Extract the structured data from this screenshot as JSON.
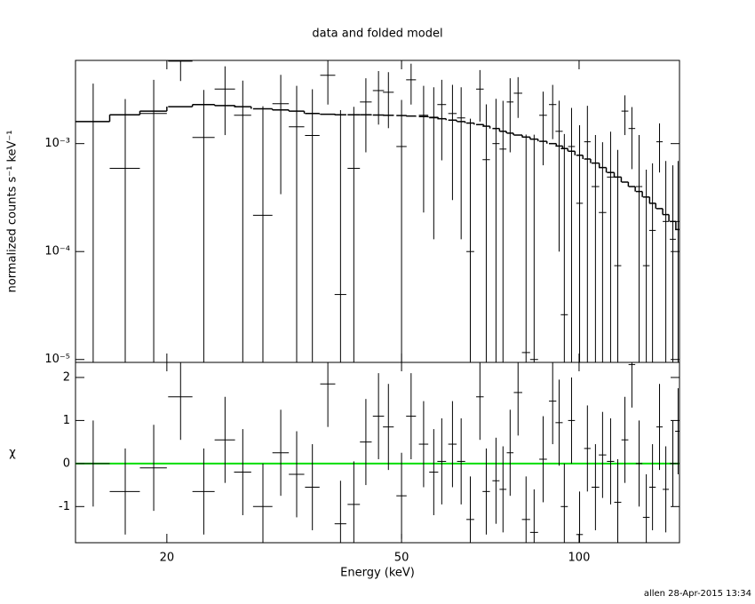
{
  "chart_data": [
    {
      "type": "errorbar",
      "title": "data and folded model",
      "ylabel": "normalized counts s⁻¹ keV⁻¹",
      "xlog": true,
      "ylog": true,
      "xlim": [
        14,
        148
      ],
      "ylim": [
        9.4e-06,
        0.0059
      ],
      "xticks": [
        20,
        50,
        100
      ],
      "yticks": [
        {
          "value": 1e-05,
          "label": "10⁻⁵"
        },
        {
          "value": 0.0001,
          "label": "10⁻⁴"
        },
        {
          "value": 0.001,
          "label": "10⁻³"
        }
      ],
      "x": [
        15.0,
        17.0,
        19.0,
        21.1,
        23.1,
        25.1,
        26.9,
        29.1,
        31.2,
        33.2,
        35.3,
        37.5,
        39.4,
        41.5,
        43.5,
        45.7,
        47.5,
        50.0,
        51.9,
        54.5,
        56.7,
        58.5,
        61.0,
        63.1,
        65.4,
        67.9,
        69.6,
        72.3,
        74.3,
        76.4,
        78.8,
        81.3,
        83.9,
        86.9,
        90.2,
        92.5,
        94.4,
        97.1,
        100.2,
        103.3,
        106.6,
        109.6,
        113.1,
        116.3,
        119.6,
        122.9,
        126.4,
        130.0,
        133.2,
        136.9,
        140.3,
        144.2,
        147.2
      ],
      "xerr": [
        1.0,
        1.0,
        1.0,
        1.0,
        1.0,
        1.0,
        0.9,
        1.1,
        1.0,
        1.0,
        1.0,
        1.1,
        0.9,
        1.0,
        1.0,
        1.0,
        1.0,
        1.0,
        1.0,
        1.0,
        1.0,
        1.0,
        1.0,
        1.0,
        1.0,
        1.0,
        1.0,
        1.0,
        1.0,
        1.0,
        1.3,
        1.3,
        1.3,
        1.3,
        1.3,
        1.3,
        1.3,
        1.3,
        1.3,
        1.3,
        1.6,
        1.6,
        1.6,
        1.6,
        1.6,
        1.6,
        1.6,
        1.7,
        1.7,
        1.7,
        1.7,
        1.7,
        1.7
      ],
      "series": [
        {
          "name": "data",
          "color": "#000000",
          "values": [
            0.0016,
            0.00059,
            0.0019,
            0.0058,
            0.00114,
            0.0032,
            0.00183,
            0.000217,
            0.00234,
            0.00143,
            0.00119,
            0.0043,
            4e-05,
            0.00059,
            0.00243,
            0.0031,
            0.00299,
            0.00094,
            0.0039,
            0.00183,
            0.00173,
            0.0023,
            0.0019,
            0.00173,
            0.0001,
            0.0032,
            0.00071,
            0.001,
            0.00089,
            0.00243,
            0.00293,
            1.16e-05,
            1e-05,
            0.00183,
            0.0023,
            0.0013,
            2.6e-05,
            0.00094,
            0.00028,
            0.00104,
            0.0004,
            0.00023,
            0.00049,
            7.4e-05,
            0.002,
            0.00138,
            0.0004,
            7.4e-05,
            0.000157,
            0.00104,
            0.00019,
            0.00013,
            0.00019
          ],
          "errors": [
            0.002,
            0.002,
            0.002,
            0.002,
            0.002,
            0.002,
            0.002,
            0.002,
            0.002,
            0.002,
            0.002,
            0.002,
            0.002,
            0.0016,
            0.0016,
            0.0016,
            0.0016,
            0.0016,
            0.0016,
            0.0016,
            0.0016,
            0.0016,
            0.0016,
            0.0016,
            0.0016,
            0.0016,
            0.0016,
            0.0016,
            0.0016,
            0.0016,
            0.0012,
            0.0012,
            0.0012,
            0.0012,
            0.0012,
            0.0012,
            0.0012,
            0.0012,
            0.0012,
            0.0012,
            0.0008,
            0.0008,
            0.0008,
            0.0008,
            0.0008,
            0.0008,
            0.0008,
            0.0005,
            0.0005,
            0.0005,
            0.0005,
            0.0005,
            0.0005
          ]
        },
        {
          "name": "model",
          "color": "#000000",
          "values": [
            0.0016,
            0.00185,
            0.002,
            0.0022,
            0.0023,
            0.00225,
            0.0022,
            0.0021,
            0.00205,
            0.002,
            0.0019,
            0.00187,
            0.00185,
            0.00185,
            0.00185,
            0.00184,
            0.00183,
            0.00182,
            0.0018,
            0.00178,
            0.00175,
            0.0017,
            0.00165,
            0.0016,
            0.00155,
            0.0015,
            0.00145,
            0.00138,
            0.0013,
            0.00125,
            0.0012,
            0.00115,
            0.0011,
            0.00105,
            0.001,
            0.00095,
            0.0009,
            0.00085,
            0.00078,
            0.00072,
            0.00066,
            0.0006,
            0.00054,
            0.00049,
            0.00044,
            0.0004,
            0.00036,
            0.00032,
            0.00028,
            0.00025,
            0.00022,
            0.00019,
            0.00016
          ]
        }
      ]
    },
    {
      "type": "residual",
      "ylabel": "χ",
      "xlabel": "Energy (keV)",
      "xlog": true,
      "xlim": [
        14,
        148
      ],
      "ylim": [
        -1.84,
        2.35
      ],
      "xticks": [
        20,
        50,
        100
      ],
      "yticks": [
        -1,
        0,
        1,
        2
      ],
      "zero_line_color": "#00dd00",
      "x": [
        15.0,
        17.0,
        19.0,
        21.1,
        23.1,
        25.1,
        26.9,
        29.1,
        31.2,
        33.2,
        35.3,
        37.5,
        39.4,
        41.5,
        43.5,
        45.7,
        47.5,
        50.0,
        51.9,
        54.5,
        56.7,
        58.5,
        61.0,
        63.1,
        65.4,
        67.9,
        69.6,
        72.3,
        74.3,
        76.4,
        78.8,
        81.3,
        83.9,
        86.9,
        90.2,
        92.5,
        94.4,
        97.1,
        100.2,
        103.3,
        106.6,
        109.6,
        113.1,
        116.3,
        119.6,
        122.9,
        126.4,
        130.0,
        133.2,
        136.9,
        140.3,
        144.2,
        147.2
      ],
      "xerr": [
        1.0,
        1.0,
        1.0,
        1.0,
        1.0,
        1.0,
        0.9,
        1.1,
        1.0,
        1.0,
        1.0,
        1.1,
        0.9,
        1.0,
        1.0,
        1.0,
        1.0,
        1.0,
        1.0,
        1.0,
        1.0,
        1.0,
        1.0,
        1.0,
        1.0,
        1.0,
        1.0,
        1.0,
        1.0,
        1.0,
        1.3,
        1.3,
        1.3,
        1.3,
        1.3,
        1.3,
        1.3,
        1.3,
        1.3,
        1.3,
        1.6,
        1.6,
        1.6,
        1.6,
        1.6,
        1.6,
        1.6,
        1.7,
        1.7,
        1.7,
        1.7,
        1.7,
        1.7
      ],
      "series": [
        {
          "name": "residuals",
          "color": "#000000",
          "values": [
            0.0,
            -0.65,
            -0.1,
            1.55,
            -0.65,
            0.55,
            -0.2,
            -1.0,
            0.25,
            -0.25,
            -0.55,
            1.85,
            -1.4,
            -0.95,
            0.5,
            1.1,
            0.85,
            -0.75,
            1.1,
            0.45,
            -0.2,
            0.05,
            0.45,
            0.05,
            -1.3,
            1.55,
            -0.65,
            -0.4,
            -0.6,
            0.25,
            1.65,
            -1.3,
            -1.6,
            0.1,
            1.45,
            0.95,
            -1.0,
            1.0,
            -1.65,
            0.35,
            -0.55,
            0.2,
            0.05,
            -0.9,
            0.55,
            2.3,
            0.0,
            -1.25,
            -0.55,
            0.85,
            -0.6,
            0.0,
            0.75
          ],
          "errors": [
            1,
            1,
            1,
            1,
            1,
            1,
            1,
            1,
            1,
            1,
            1,
            1,
            1,
            1,
            1,
            1,
            1,
            1,
            1,
            1,
            1,
            1,
            1,
            1,
            1,
            1,
            1,
            1,
            1,
            1,
            1,
            1,
            1,
            1,
            1,
            1,
            1,
            1,
            1,
            1,
            1,
            1,
            1,
            1,
            1,
            1,
            1,
            1,
            1,
            1,
            1,
            1,
            1
          ]
        }
      ]
    }
  ],
  "footer": "allen 28-Apr-2015 13:34"
}
